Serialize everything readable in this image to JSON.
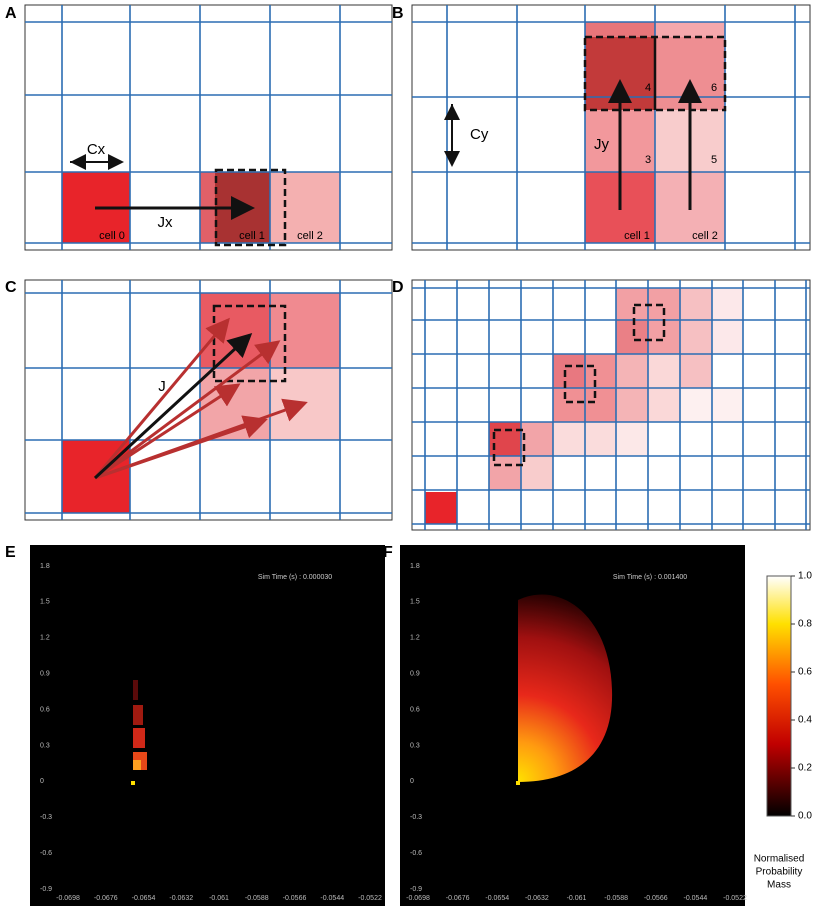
{
  "panels": {
    "a": {
      "letter": "A",
      "cx": "Cx",
      "jx": "Jx",
      "cells": [
        "cell 0",
        "cell 1",
        "cell 2"
      ]
    },
    "b": {
      "letter": "B",
      "cy": "Cy",
      "jy": "Jy",
      "cells": [
        "cell 1",
        "cell 2"
      ],
      "numbers": [
        "3",
        "4",
        "5",
        "6"
      ]
    },
    "c": {
      "letter": "C",
      "j": "J"
    },
    "d": {
      "letter": "D"
    },
    "e": {
      "letter": "E",
      "sim_time": "Sim Time (s) : 0.000030"
    },
    "f": {
      "letter": "F",
      "sim_time": "Sim Time (s) : 0.001400"
    }
  },
  "axes": {
    "x_ticks": [
      "-0.0698",
      "-0.0676",
      "-0.0654",
      "-0.0632",
      "-0.061",
      "-0.0588",
      "-0.0566",
      "-0.0544",
      "-0.0522"
    ],
    "y_ticks": [
      "1.8",
      "1.5",
      "1.2",
      "0.9",
      "0.6",
      "0.3",
      "0",
      "-0.3",
      "-0.6",
      "-0.9"
    ]
  },
  "colorbar": {
    "ticks": [
      "1.0",
      "0.8",
      "0.6",
      "0.4",
      "0.2",
      "0.0"
    ],
    "label": [
      "Normalised",
      "Probability",
      "Mass"
    ]
  }
}
